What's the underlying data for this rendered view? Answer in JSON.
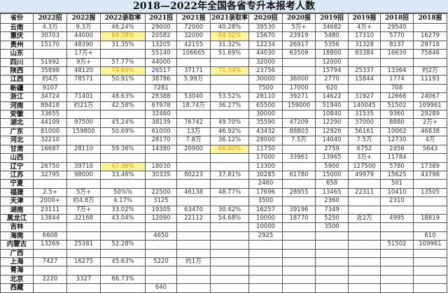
{
  "title": "2018—2022年全国各省专升本报考人数",
  "highlight_color": "#fff39c",
  "highlight_text_color": "#e69500",
  "columns": [
    "省份",
    "2022招",
    "2022报",
    "2022录取率",
    "2021招",
    "2021报",
    "2021录取率",
    "2020招",
    "2020报",
    "2019招",
    "2019报",
    "2018招",
    "2018报"
  ],
  "rows": [
    [
      "云南",
      "4.3万",
      "9.3万",
      "46.24%",
      "29000",
      "72000",
      "40.28%",
      "39530",
      "5万+",
      "34682",
      "4万+",
      "29540",
      ""
    ],
    [
      "重庆",
      "30703",
      "44000",
      "69.78%",
      "20582",
      "32000",
      "64.32%",
      "15670",
      "23919",
      "5480",
      "17310",
      "5770",
      "16279"
    ],
    [
      "贵州",
      "15170",
      "48390",
      "31.35%",
      "13205",
      "42155",
      "31.32%",
      "12234",
      "26917",
      "5356",
      "31328",
      "8137",
      "29718"
    ],
    [
      "山东",
      "",
      "17万+",
      "",
      "55140",
      "106665",
      "51.69%",
      "44030",
      "63509",
      "18800",
      "83384",
      "16630",
      "75846"
    ],
    [
      "四川",
      "51992",
      "9万+",
      "57.77%",
      "44000",
      "",
      "",
      "32000",
      "",
      "12000",
      "",
      "",
      ""
    ],
    [
      "陕西",
      "35898",
      "48120",
      "74.60%",
      "26517",
      "37171",
      "71.34%",
      "23756",
      "",
      "15794",
      "25337",
      "13364",
      "约2万"
    ],
    [
      "江西",
      "约4万",
      "78571",
      "50.91%",
      "38786",
      "5.99万",
      "",
      "30000",
      "36000",
      "2770",
      "15844",
      "1774",
      "11193"
    ],
    [
      "新疆",
      "9107",
      "",
      "",
      "7281",
      "",
      "",
      "7500",
      "17000",
      "620",
      "",
      "708",
      ""
    ],
    [
      "浙江",
      "34724",
      "71401",
      "48.63%",
      "28388",
      "53040",
      "53.52%",
      "28110",
      "39271",
      "14622",
      "31927",
      "12666",
      "24067"
    ],
    [
      "河南",
      "89418",
      "约21万",
      "42.58%",
      "67978",
      "18.74万",
      "36.27%",
      "65500",
      "159000",
      "51940",
      "140045",
      "51502",
      "109961"
    ],
    [
      "安徽",
      "33655",
      "",
      "",
      "32460",
      "",
      "",
      "30000",
      "",
      "10840",
      "31535",
      "9360",
      "29289"
    ],
    [
      "湖北",
      "44109",
      "97500",
      "45.24%",
      "38139",
      "76742",
      "49.70%",
      "35590",
      "47209",
      "12290",
      "37000",
      "8880",
      "2万+"
    ],
    [
      "广东",
      "81000",
      "159800",
      "50.69%",
      "61000",
      "13万",
      "46.92%",
      "43432",
      "88803",
      "12926",
      "56161",
      "10062",
      "46838"
    ],
    [
      "河北",
      "32210",
      "",
      "",
      "28170",
      "7.8万",
      "36.12%",
      "28000",
      "7.5万",
      "14040",
      "7.5万",
      "12730",
      "4万"
    ],
    [
      "甘肃",
      "16687",
      "28110",
      "59.36%",
      "14380",
      "20900",
      "68.80%",
      "11750",
      "",
      "2759",
      "6752",
      "2456",
      "5643"
    ],
    [
      "山西",
      "",
      "",
      "",
      "",
      "",
      "",
      "17000",
      "33961",
      "13965",
      "3万+",
      "11784",
      ""
    ],
    [
      "辽宁",
      "26750",
      "39710",
      "67.36%",
      "18030",
      "",
      "",
      "13300",
      "",
      "5900",
      "127500",
      "5780",
      "17389"
    ],
    [
      "江苏",
      "32795",
      "98000",
      "33.46%",
      "30335",
      "80223",
      "37.81%",
      "30285",
      "61780",
      "15000",
      "49979",
      "15625",
      "43798"
    ],
    [
      "宁夏",
      "",
      "",
      "",
      "",
      "",
      "",
      "2460",
      "",
      "658",
      "",
      "501",
      ""
    ],
    [
      "福建",
      "2.5+",
      "5万+",
      "50%%",
      "22500",
      "46138",
      "48.77%",
      "17696",
      "28955",
      "13465",
      "22311",
      "10410",
      "13505"
    ],
    [
      "天津",
      "2000+",
      "约4.8万",
      "4.17%",
      "3125",
      "",
      "",
      "3500",
      "",
      "2360",
      "",
      "2310",
      ""
    ],
    [
      "湖南",
      "23111",
      "7万+",
      "33.02%",
      "19305",
      "63470",
      "30.42%",
      "16257",
      "39196",
      "7349",
      "",
      "",
      ""
    ],
    [
      "黑龙江",
      "13844",
      "32168",
      "43.04%",
      "12090",
      "22112",
      "54.68%",
      "10000",
      "18770",
      "5250",
      "近2万",
      "4995",
      "18819"
    ],
    [
      "吉林",
      "",
      "",
      "",
      "",
      "",
      "",
      "10000",
      "",
      "3500",
      "",
      "",
      ""
    ],
    [
      "海南",
      "6608",
      "",
      "",
      "4650",
      "",
      "",
      "2925",
      "",
      "",
      "",
      "",
      "610"
    ],
    [
      "内蒙古",
      "13269",
      "25381",
      "52.28%",
      "",
      "",
      "",
      "",
      "",
      "",
      "",
      "51502",
      "109961"
    ],
    [
      "广西",
      "",
      "",
      "",
      "",
      "",
      "",
      "",
      "",
      "",
      "",
      "",
      ""
    ],
    [
      "上海",
      "7427",
      "16275",
      "45.63%",
      "5220",
      "约1万",
      "",
      "",
      "",
      "",
      "",
      "",
      ""
    ],
    [
      "青海",
      "",
      "",
      "",
      "",
      "",
      "",
      "",
      "",
      "",
      "",
      "",
      ""
    ],
    [
      "北京",
      "2220",
      "3327",
      "66.73%",
      "",
      "",
      "",
      "",
      "",
      "",
      "",
      "",
      ""
    ],
    [
      "西藏",
      "",
      "",
      "",
      "640",
      "",
      "",
      "",
      "",
      "",
      "",
      "",
      ""
    ]
  ],
  "highlighted_cells": [
    [
      1,
      3
    ],
    [
      1,
      6
    ],
    [
      5,
      3
    ],
    [
      5,
      6
    ],
    [
      14,
      6
    ],
    [
      16,
      3
    ]
  ]
}
